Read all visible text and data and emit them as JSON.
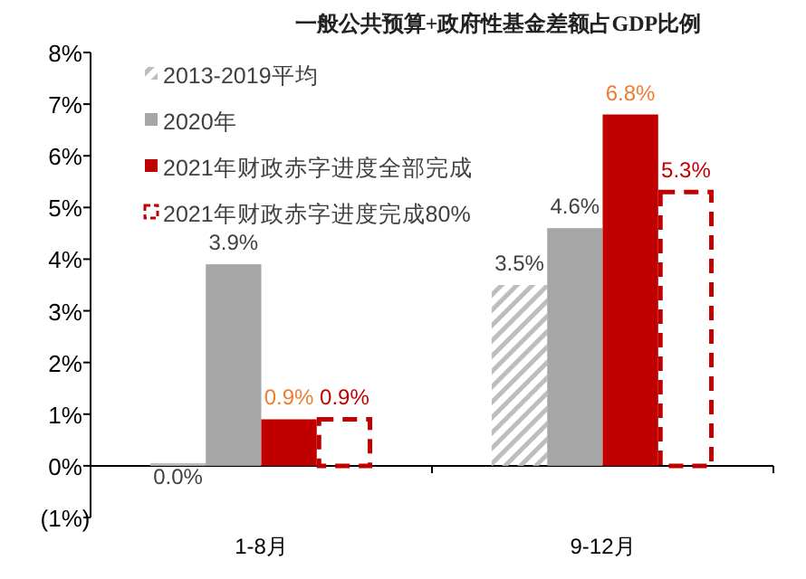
{
  "chart_data": {
    "type": "bar",
    "title": "一般公共预算+政府性基金差额占GDP比例",
    "categories": [
      "1-8月",
      "9-12月"
    ],
    "series": [
      {
        "name": "2013-2019平均",
        "color": "#bdbdbd",
        "values": [
          0.0,
          3.5
        ],
        "value_labels": [
          "0.0%",
          "3.5%"
        ]
      },
      {
        "name": "2020年",
        "color": "#a6a6a6",
        "values": [
          3.9,
          4.6
        ],
        "value_labels": [
          "3.9%",
          "4.6%"
        ]
      },
      {
        "name": "2021年财政赤字进度全部完成",
        "color": "#c00000",
        "values": [
          0.9,
          6.8
        ],
        "value_labels": [
          "0.9%",
          "6.8%"
        ]
      },
      {
        "name": "2021年财政赤字进度完成80%",
        "color": "#c00000",
        "values": [
          0.9,
          5.3
        ],
        "value_labels": [
          "0.9%",
          "5.3%"
        ],
        "line_style": "dashed"
      }
    ],
    "ylim": [
      -1,
      8
    ],
    "yticks": [
      {
        "value": -1,
        "label": "(1%)"
      },
      {
        "value": 0,
        "label": "0%"
      },
      {
        "value": 1,
        "label": "1%"
      },
      {
        "value": 2,
        "label": "2%"
      },
      {
        "value": 3,
        "label": "3%"
      },
      {
        "value": 4,
        "label": "4%"
      },
      {
        "value": 5,
        "label": "5%"
      },
      {
        "value": 6,
        "label": "6%"
      },
      {
        "value": 7,
        "label": "7%"
      },
      {
        "value": 8,
        "label": "8%"
      }
    ],
    "legend": "top left"
  }
}
